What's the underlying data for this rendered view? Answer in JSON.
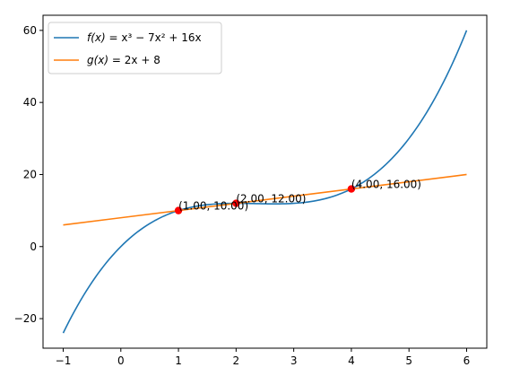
{
  "chart_data": {
    "type": "line",
    "xlim": [
      -1.35,
      6.35
    ],
    "ylim": [
      -28.2,
      64.2
    ],
    "xticks": [
      -1,
      0,
      1,
      2,
      3,
      4,
      5,
      6
    ],
    "yticks": [
      -20,
      0,
      20,
      40,
      60
    ],
    "xtick_labels": [
      "−1",
      "0",
      "1",
      "2",
      "3",
      "4",
      "5",
      "6"
    ],
    "ytick_labels": [
      "−20",
      "0",
      "20",
      "40",
      "60"
    ],
    "grid": false,
    "legend_position": "top-left",
    "series": [
      {
        "name": "f(x) = x³ − 7x² + 16x",
        "color": "#1f77b4",
        "x": [
          -1.0,
          -0.5,
          0.0,
          0.5,
          1.0,
          1.5,
          2.0,
          2.5,
          3.0,
          3.5,
          4.0,
          4.5,
          5.0,
          5.5,
          6.0
        ],
        "y": [
          -24.0,
          -9.88,
          0.0,
          6.38,
          10.0,
          11.63,
          12.0,
          11.88,
          12.0,
          13.13,
          16.0,
          21.38,
          30.0,
          42.63,
          60.0
        ]
      },
      {
        "name": "g(x) = 2x + 8",
        "color": "#ff7f0e",
        "x": [
          -1.0,
          6.0
        ],
        "y": [
          6.0,
          20.0
        ]
      }
    ],
    "points": [
      {
        "x": 1,
        "y": 10,
        "label": "(1.00, 10.00)"
      },
      {
        "x": 2,
        "y": 12,
        "label": "(2.00, 12.00)"
      },
      {
        "x": 4,
        "y": 16,
        "label": "(4.00, 16.00)"
      }
    ],
    "point_color": "#ff0000",
    "legend": [
      {
        "italic": "f(x)",
        "rest": " = x³ − 7x² + 16x"
      },
      {
        "italic": "g(x)",
        "rest": " = 2x + 8"
      }
    ]
  }
}
